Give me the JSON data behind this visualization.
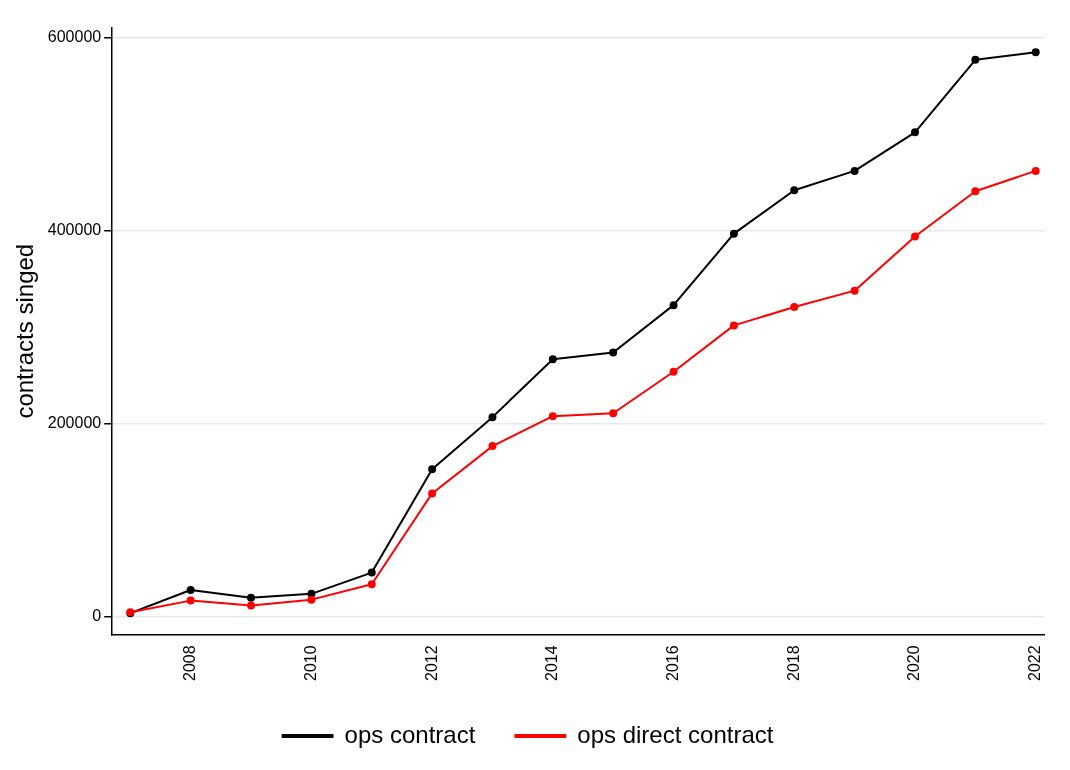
{
  "chart_data": {
    "type": "line",
    "ylabel": "contracts singed",
    "x": [
      2007,
      2008,
      2009,
      2010,
      2011,
      2012,
      2013,
      2014,
      2015,
      2016,
      2017,
      2018,
      2019,
      2020,
      2021,
      2022
    ],
    "series": [
      {
        "name": "ops contract",
        "color": "#000000",
        "values": [
          4000,
          28000,
          20000,
          24000,
          46000,
          153000,
          207000,
          267000,
          274000,
          323000,
          397000,
          442000,
          462000,
          502000,
          577000,
          585000
        ]
      },
      {
        "name": "ops direct contract",
        "color": "#ff0000",
        "values": [
          5000,
          17000,
          12000,
          18000,
          34000,
          128000,
          177000,
          208000,
          211000,
          254000,
          302000,
          321000,
          338000,
          394000,
          441000,
          462000
        ]
      }
    ],
    "xlim": [
      2006.7,
      2022.15
    ],
    "xticks": [
      2008,
      2010,
      2012,
      2014,
      2016,
      2018,
      2020,
      2022
    ],
    "ylim": [
      -18000,
      610000
    ],
    "yticks": [
      0,
      200000,
      400000,
      600000
    ],
    "grid": "y",
    "legend": "bottom",
    "marker": "circle",
    "line_style": "solid"
  }
}
